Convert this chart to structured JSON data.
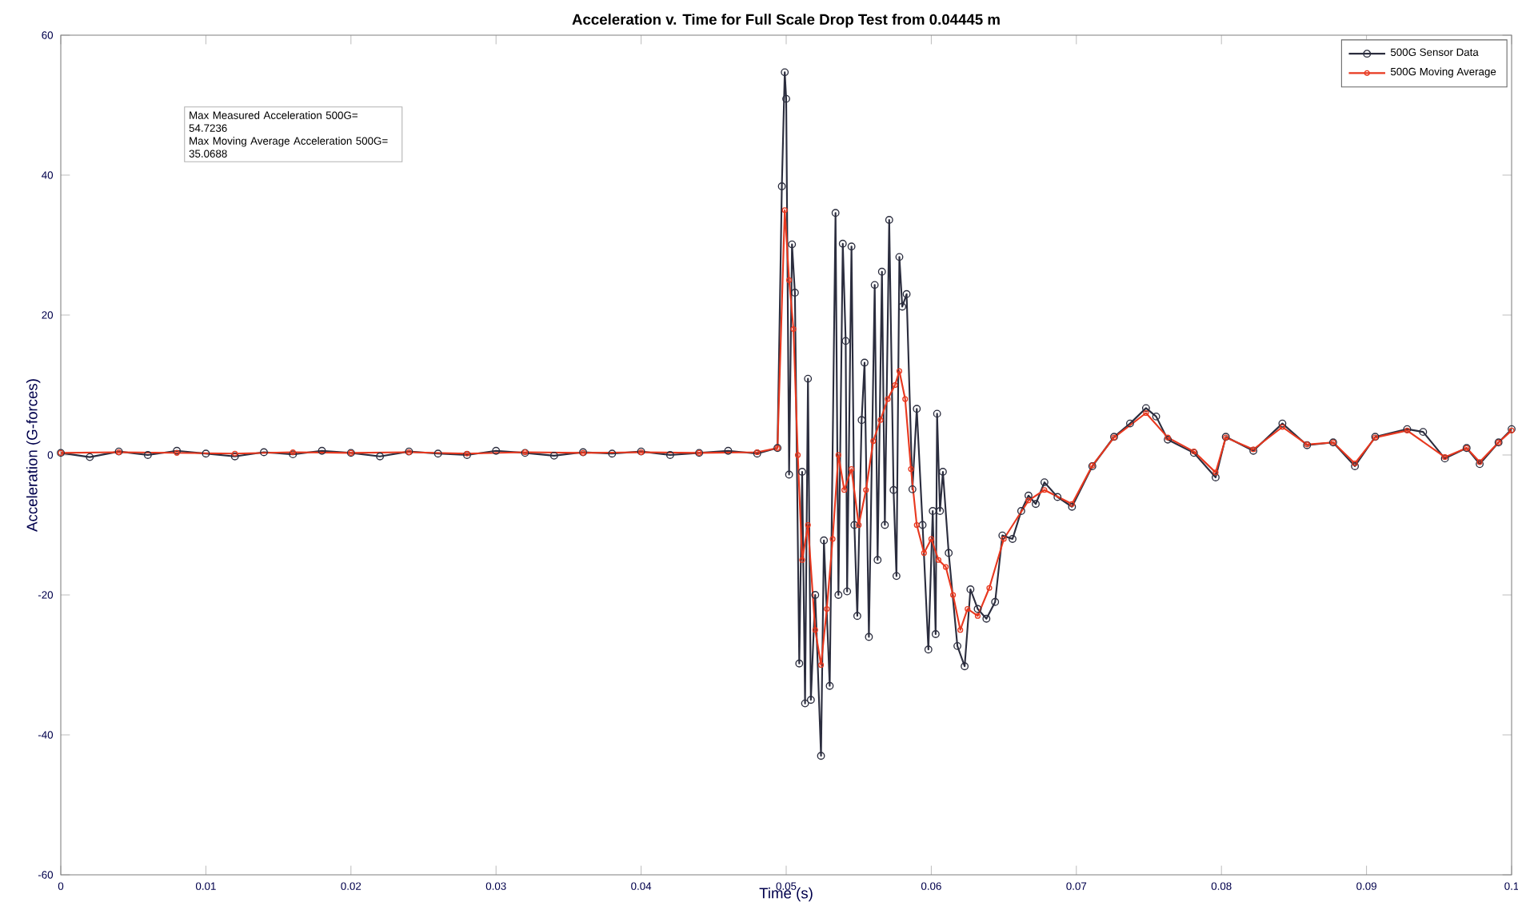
{
  "chart_data": {
    "type": "line",
    "title": "Acceleration v. Time for Full Scale Drop Test from 0.04445 m",
    "xlabel": "Time (s)",
    "ylabel": "Acceleration (G-forces)",
    "annotations": [
      "Max Measured Acceleration 500G= 54.7236",
      "Max Moving Average Acceleration 500G= 35.0688"
    ],
    "xlim": [
      0,
      0.1
    ],
    "ylim": [
      -60,
      60
    ],
    "xticks": [
      0,
      0.01,
      0.02,
      0.03,
      0.04,
      0.05,
      0.06,
      0.07,
      0.08,
      0.09,
      0.1
    ],
    "yticks": [
      -60,
      -40,
      -20,
      0,
      20,
      40,
      60
    ],
    "legend": "top right",
    "marker": "circle",
    "line_style": "solid",
    "grid": false,
    "series": [
      {
        "name": "500G Sensor Data",
        "color": "#2b2d3e",
        "x": [
          0,
          0.002,
          0.004,
          0.006,
          0.008,
          0.01,
          0.012,
          0.014,
          0.016,
          0.018,
          0.02,
          0.022,
          0.024,
          0.026,
          0.028,
          0.03,
          0.032,
          0.034,
          0.036,
          0.038,
          0.04,
          0.042,
          0.044,
          0.046,
          0.048,
          0.0494,
          0.0497,
          0.0499,
          0.05,
          0.0502,
          0.0504,
          0.0506,
          0.0509,
          0.0511,
          0.0513,
          0.0515,
          0.0517,
          0.052,
          0.0524,
          0.0526,
          0.053,
          0.0534,
          0.0536,
          0.0539,
          0.0541,
          0.0542,
          0.0545,
          0.0547,
          0.0549,
          0.0552,
          0.0554,
          0.0557,
          0.0561,
          0.0563,
          0.0566,
          0.0568,
          0.0571,
          0.0574,
          0.0576,
          0.0578,
          0.058,
          0.0583,
          0.0587,
          0.059,
          0.0594,
          0.0598,
          0.0601,
          0.0603,
          0.0604,
          0.0606,
          0.0608,
          0.0612,
          0.0618,
          0.0623,
          0.0627,
          0.0632,
          0.0638,
          0.0644,
          0.0649,
          0.0656,
          0.0662,
          0.0667,
          0.0672,
          0.0678,
          0.0687,
          0.0697,
          0.0711,
          0.0726,
          0.0737,
          0.0748,
          0.0755,
          0.0763,
          0.0781,
          0.0796,
          0.0803,
          0.0822,
          0.0842,
          0.0859,
          0.0877,
          0.0892,
          0.0906,
          0.0928,
          0.0939,
          0.0954,
          0.0969,
          0.0978,
          0.0991,
          0.1
        ],
        "values": [
          0.3,
          -0.3,
          0.5,
          0.0,
          0.6,
          0.2,
          -0.2,
          0.4,
          0.1,
          0.6,
          0.3,
          -0.2,
          0.5,
          0.2,
          0.0,
          0.6,
          0.3,
          -0.1,
          0.4,
          0.2,
          0.5,
          0.0,
          0.3,
          0.6,
          0.2,
          1,
          38.4,
          54.7,
          50.9,
          -2.8,
          30.1,
          23.2,
          -29.8,
          -2.4,
          -35.5,
          10.9,
          -35,
          -20,
          -43,
          -12.2,
          -33,
          34.6,
          -20,
          30.2,
          16.3,
          -19.5,
          29.8,
          -10,
          -23,
          5,
          13.2,
          -26,
          24.3,
          -15,
          26.2,
          -10,
          33.6,
          -5,
          -17.3,
          28.3,
          21.2,
          23,
          -4.9,
          6.6,
          -10,
          -27.8,
          -8,
          -25.6,
          5.9,
          -8,
          -2.4,
          -14,
          -27.3,
          -30.2,
          -19.2,
          -22,
          -23.4,
          -21,
          -11.5,
          -12,
          -8,
          -5.8,
          -7,
          -3.9,
          -6,
          -7.4,
          -1.6,
          2.6,
          4.5,
          6.7,
          5.5,
          2.2,
          0.3,
          -3.2,
          2.6,
          0.6,
          4.5,
          1.4,
          1.8,
          -1.6,
          2.6,
          3.7,
          3.3,
          -0.5,
          1,
          -1.3,
          1.8,
          3.7
        ]
      },
      {
        "name": "500G Moving Average",
        "color": "#e8381f",
        "x": [
          0,
          0.004,
          0.008,
          0.012,
          0.016,
          0.02,
          0.024,
          0.028,
          0.032,
          0.036,
          0.04,
          0.044,
          0.048,
          0.0494,
          0.0499,
          0.0502,
          0.0505,
          0.0508,
          0.0511,
          0.0515,
          0.052,
          0.0524,
          0.0528,
          0.0532,
          0.0536,
          0.054,
          0.0545,
          0.055,
          0.0555,
          0.056,
          0.0565,
          0.057,
          0.0575,
          0.0578,
          0.0582,
          0.0586,
          0.059,
          0.0595,
          0.06,
          0.0605,
          0.061,
          0.0615,
          0.062,
          0.0625,
          0.0632,
          0.064,
          0.065,
          0.0667,
          0.0678,
          0.0697,
          0.0711,
          0.0726,
          0.0748,
          0.0763,
          0.0781,
          0.0796,
          0.0803,
          0.0822,
          0.0842,
          0.0859,
          0.0877,
          0.0892,
          0.0906,
          0.0928,
          0.0954,
          0.0969,
          0.0978,
          0.0991,
          0.1
        ],
        "values": [
          0.3,
          0.4,
          0.3,
          0.2,
          0.4,
          0.3,
          0.4,
          0.2,
          0.4,
          0.3,
          0.4,
          0.3,
          0.4,
          1,
          35,
          25,
          18,
          0,
          -15,
          -10,
          -25,
          -30,
          -22,
          -12,
          0,
          -5,
          -2,
          -10,
          -5,
          2,
          5,
          8,
          10,
          12,
          8,
          -2,
          -10,
          -14,
          -12,
          -15,
          -16,
          -20,
          -25,
          -22,
          -23,
          -19,
          -12,
          -6.5,
          -5,
          -7,
          -1.5,
          2.5,
          6,
          2.5,
          0.5,
          -2.5,
          2.5,
          0.8,
          4,
          1.5,
          1.8,
          -1.2,
          2.5,
          3.5,
          -0.3,
          1,
          -1,
          1.8,
          3.5
        ]
      }
    ]
  }
}
